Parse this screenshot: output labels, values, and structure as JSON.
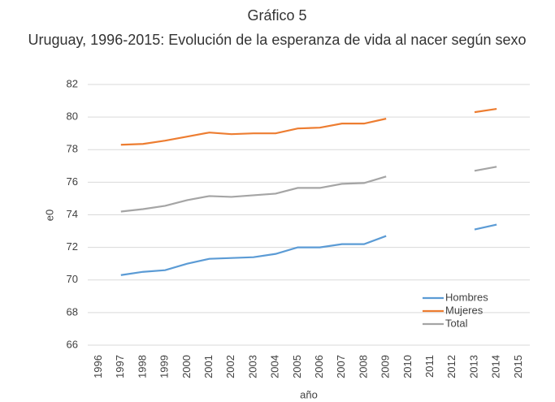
{
  "chart_data": {
    "type": "line",
    "title": "Gráfico 5",
    "subtitle": "Uruguay, 1996-2015: Evolución de la esperanza de vida al nacer según sexo",
    "x_label": "año",
    "y_label": "e0",
    "categories": [
      "1996",
      "1997",
      "1998",
      "1999",
      "2000",
      "2001",
      "2002",
      "2003",
      "2004",
      "2005",
      "2006",
      "2007",
      "2008",
      "2009",
      "2010",
      "2011",
      "2012",
      "2013",
      "2014",
      "2015"
    ],
    "series": [
      {
        "name": "Hombres",
        "color": "#5b9bd5",
        "values": [
          null,
          70.3,
          70.5,
          70.6,
          71.0,
          71.3,
          71.35,
          71.4,
          71.6,
          72.0,
          72.0,
          72.2,
          72.2,
          72.7,
          null,
          null,
          null,
          73.1,
          73.4,
          null
        ]
      },
      {
        "name": "Mujeres",
        "color": "#ed7d31",
        "values": [
          null,
          78.3,
          78.35,
          78.55,
          78.8,
          79.05,
          78.95,
          79.0,
          79.0,
          79.3,
          79.35,
          79.6,
          79.6,
          79.9,
          null,
          null,
          null,
          80.3,
          80.5,
          null
        ]
      },
      {
        "name": "Total",
        "color": "#a5a5a5",
        "values": [
          null,
          74.2,
          74.35,
          74.55,
          74.9,
          75.15,
          75.1,
          75.2,
          75.3,
          75.65,
          75.65,
          75.9,
          75.95,
          76.35,
          null,
          null,
          null,
          76.7,
          76.95,
          null
        ]
      }
    ],
    "ylim": [
      66,
      82
    ],
    "yticks": [
      66,
      68,
      70,
      72,
      74,
      76,
      78,
      80,
      82
    ],
    "grid": true,
    "legend": "lower-right"
  }
}
